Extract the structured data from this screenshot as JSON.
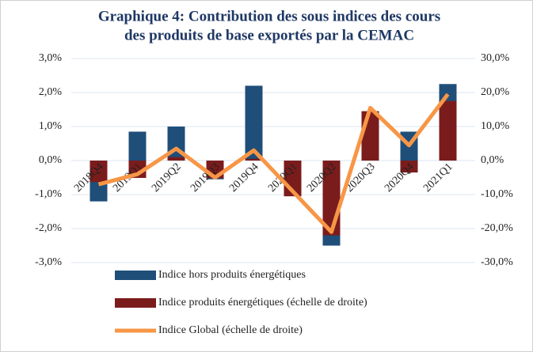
{
  "chart_data": {
    "type": "bar_line",
    "title": [
      "Graphique 4: Contribution des sous indices  des cours",
      "des produits de base exportés par la CEMAC"
    ],
    "categories": [
      "2018Q4",
      "2019Q1",
      "2019Q2",
      "2019Q3",
      "2019Q4",
      "2020Q1",
      "2020Q2",
      "2020Q3",
      "2020Q4",
      "2021Q1"
    ],
    "series": [
      {
        "name": "Indice hors produits énergétiques",
        "type": "bar",
        "axis": "y",
        "color": "#1f4e79",
        "values": [
          -1.2,
          0.85,
          1.0,
          -0.55,
          2.2,
          -0.9,
          -2.5,
          1.45,
          0.85,
          2.25
        ]
      },
      {
        "name": "Indice produits énergétiques (échelle de droite)",
        "type": "bar",
        "axis": "y2",
        "color": "#7b1c1c",
        "values": [
          -6.3,
          -5.1,
          1.0,
          -5.2,
          0.5,
          -10.5,
          -22,
          14.5,
          -3.5,
          17.5
        ]
      },
      {
        "name": "Indice Global (échelle de droite)",
        "type": "line",
        "axis": "y2",
        "color": "#f79646",
        "values": [
          -7,
          -4,
          3.5,
          -5,
          3,
          -9,
          -21,
          15.5,
          4.5,
          19.5
        ]
      }
    ],
    "ylim": [
      -3,
      3
    ],
    "yticks": [
      {
        "value": -3,
        "label": "-3,0%"
      },
      {
        "value": -2,
        "label": "-2,0%"
      },
      {
        "value": -1,
        "label": "-1,0%"
      },
      {
        "value": 0,
        "label": "0,0%"
      },
      {
        "value": 1,
        "label": "1,0%"
      },
      {
        "value": 2,
        "label": "2,0%"
      },
      {
        "value": 3,
        "label": "3,0%"
      }
    ],
    "y2lim": [
      -30,
      30
    ],
    "y2ticks": [
      {
        "value": -30,
        "label": "-30,0%"
      },
      {
        "value": -20,
        "label": "-20,0%"
      },
      {
        "value": -10,
        "label": "-10,0%"
      },
      {
        "value": 0,
        "label": "0,0%"
      },
      {
        "value": 10,
        "label": "10,0%"
      },
      {
        "value": 20,
        "label": "20,0%"
      },
      {
        "value": 30,
        "label": "30,0%"
      }
    ],
    "grid": true
  }
}
